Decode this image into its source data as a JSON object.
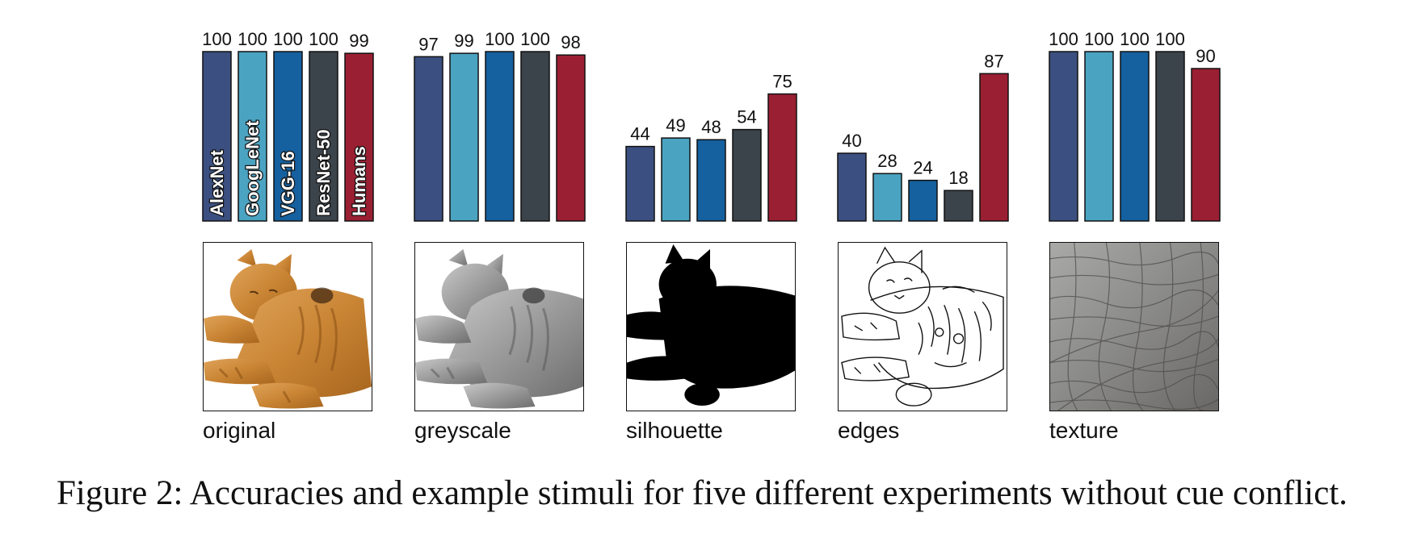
{
  "figure": {
    "caption": "Figure 2: Accuracies and example stimuli for five different experiments without cue conflict."
  },
  "chart_data": [
    {
      "type": "bar",
      "categories": [
        "AlexNet",
        "GoogLeNet",
        "VGG-16",
        "ResNet-50",
        "Humans"
      ],
      "values": [
        100,
        100,
        100,
        100,
        99
      ],
      "ylim": [
        0,
        100
      ],
      "grid": false,
      "label": "original"
    },
    {
      "type": "bar",
      "categories": [
        "AlexNet",
        "GoogLeNet",
        "VGG-16",
        "ResNet-50",
        "Humans"
      ],
      "values": [
        97,
        99,
        100,
        100,
        98
      ],
      "ylim": [
        0,
        100
      ],
      "grid": false,
      "label": "greyscale"
    },
    {
      "type": "bar",
      "categories": [
        "AlexNet",
        "GoogLeNet",
        "VGG-16",
        "ResNet-50",
        "Humans"
      ],
      "values": [
        44,
        49,
        48,
        54,
        75
      ],
      "ylim": [
        0,
        100
      ],
      "grid": false,
      "label": "silhouette"
    },
    {
      "type": "bar",
      "categories": [
        "AlexNet",
        "GoogLeNet",
        "VGG-16",
        "ResNet-50",
        "Humans"
      ],
      "values": [
        40,
        28,
        24,
        18,
        87
      ],
      "ylim": [
        0,
        100
      ],
      "grid": false,
      "label": "edges"
    },
    {
      "type": "bar",
      "categories": [
        "AlexNet",
        "GoogLeNet",
        "VGG-16",
        "ResNet-50",
        "Humans"
      ],
      "values": [
        100,
        100,
        100,
        100,
        90
      ],
      "ylim": [
        0,
        100
      ],
      "grid": false,
      "label": "texture"
    }
  ],
  "colors": {
    "AlexNet": "#3b4f80",
    "GoogLeNet": "#4ba3c2",
    "VGG-16": "#15609e",
    "ResNet-50": "#3b434b",
    "Humans": "#9b1f32"
  },
  "stimuli": [
    "cat-photo",
    "cat-greyscale-photo",
    "cat-silhouette",
    "cat-edge-drawing",
    "elephant-skin-texture"
  ]
}
